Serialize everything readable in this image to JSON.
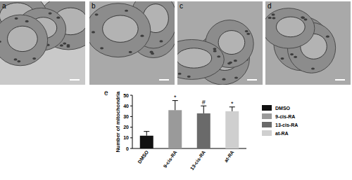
{
  "panels": [
    "a",
    "b",
    "c",
    "d",
    "e"
  ],
  "chart_data": {
    "type": "bar",
    "y_label": "Number of mitochondria",
    "categories": [
      "DMSO",
      "9-cis-RA",
      "13-cis-RA",
      "at-RA"
    ],
    "values": [
      12,
      36,
      33,
      35
    ],
    "errors": [
      4,
      9,
      7,
      4
    ],
    "annotations": [
      null,
      "*",
      "#",
      "*"
    ],
    "colors": [
      "#111111",
      "#9a9a9a",
      "#6a6a6a",
      "#cfcfcf"
    ],
    "ylim": [
      0,
      50
    ],
    "yticks": [
      0,
      10,
      20,
      30,
      40,
      50
    ],
    "grid": false,
    "legend": "right"
  }
}
